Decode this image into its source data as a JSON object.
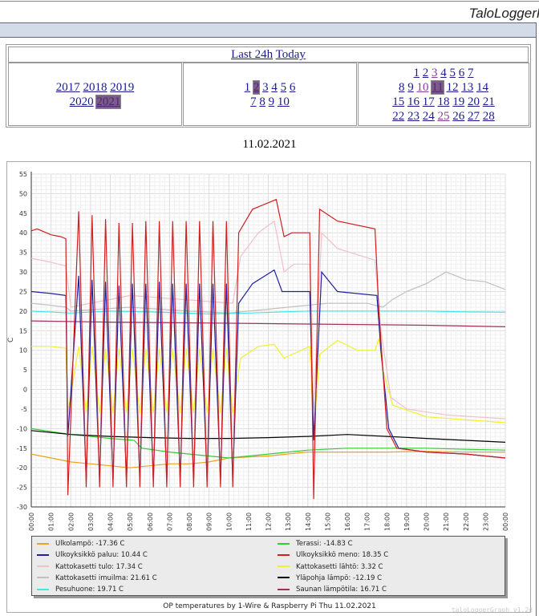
{
  "app": {
    "title": "TaloLoggerPi"
  },
  "nav": {
    "quick": [
      {
        "label": "Last 24h"
      },
      {
        "label": "Today"
      }
    ],
    "years": [
      {
        "label": "2017"
      },
      {
        "label": "2018"
      },
      {
        "label": "2019"
      },
      {
        "label": "2020"
      },
      {
        "label": "2021",
        "selected": true
      }
    ],
    "months": [
      {
        "label": "1"
      },
      {
        "label": "2",
        "selected": true
      },
      {
        "label": "3"
      },
      {
        "label": "4"
      },
      {
        "label": "5"
      },
      {
        "label": "6"
      },
      {
        "label": "7"
      },
      {
        "label": "8"
      },
      {
        "label": "9"
      },
      {
        "label": "10"
      }
    ],
    "days": [
      "1",
      "2",
      "3",
      "4",
      "5",
      "6",
      "7",
      "8",
      "9",
      "10",
      "11",
      "12",
      "13",
      "14",
      "15",
      "16",
      "17",
      "18",
      "19",
      "20",
      "21",
      "22",
      "23",
      "24",
      "25",
      "26",
      "27",
      "28"
    ],
    "visited_days": [
      "3",
      "10",
      "25"
    ],
    "selected_day": "11"
  },
  "date_heading": "11.02.2021",
  "chart_data": {
    "type": "line",
    "title": "OP temperatures by 1-Wire & Raspberry Pi Thu 11.02.2021",
    "ylabel": "C",
    "ylim": [
      -30,
      55
    ],
    "yticks": [
      -30,
      -25,
      -20,
      -15,
      -10,
      -5,
      0,
      5,
      10,
      15,
      20,
      25,
      30,
      35,
      40,
      45,
      50,
      55
    ],
    "xticks": [
      "00:00",
      "01:00",
      "02:00",
      "03:00",
      "04:00",
      "05:00",
      "06:00",
      "07:00",
      "08:00",
      "09:00",
      "10:00",
      "11:00",
      "12:00",
      "13:00",
      "14:00",
      "15:00",
      "16:00",
      "17:00",
      "18:00",
      "19:00",
      "20:00",
      "21:00",
      "22:00",
      "23:00",
      "00:00"
    ],
    "grid": true,
    "legend_placement": "bottom",
    "series": [
      {
        "name": "Ulkolampö: -17.36 C",
        "color": "#f0a020",
        "points": [
          [
            0,
            -16.5
          ],
          [
            1,
            -17.5
          ],
          [
            2,
            -18.5
          ],
          [
            3,
            -19
          ],
          [
            4,
            -19.5
          ],
          [
            5,
            -20
          ],
          [
            6,
            -19.5
          ],
          [
            7,
            -19
          ],
          [
            8,
            -19
          ],
          [
            9,
            -18.5
          ],
          [
            10,
            -17.5
          ],
          [
            12,
            -17
          ],
          [
            14,
            -16
          ],
          [
            16,
            -16
          ],
          [
            18,
            -16
          ],
          [
            20,
            -15.8
          ],
          [
            22,
            -16
          ],
          [
            24,
            -16
          ]
        ]
      },
      {
        "name": "Terassi: -14.83 C",
        "color": "#30d030",
        "points": [
          [
            0,
            -10
          ],
          [
            2,
            -11.5
          ],
          [
            4,
            -12.5
          ],
          [
            5.2,
            -13
          ],
          [
            5.6,
            -15
          ],
          [
            7,
            -16
          ],
          [
            8,
            -16.5
          ],
          [
            10,
            -17.5
          ],
          [
            12,
            -16.5
          ],
          [
            14,
            -15.5
          ],
          [
            16,
            -15
          ],
          [
            18,
            -15
          ],
          [
            20,
            -15
          ],
          [
            22,
            -15.3
          ],
          [
            24,
            -15.5
          ]
        ]
      },
      {
        "name": "Ulkoyksikkö paluu: 10.44 C",
        "color": "#2020a0",
        "points": [
          [
            0,
            25
          ],
          [
            1,
            24.5
          ],
          [
            1.75,
            24
          ],
          [
            1.85,
            -12
          ],
          [
            2.4,
            29
          ],
          [
            2.78,
            -23
          ],
          [
            3.08,
            28
          ],
          [
            3.46,
            -23
          ],
          [
            3.76,
            27.5
          ],
          [
            4.14,
            -23
          ],
          [
            4.44,
            26.5
          ],
          [
            4.82,
            -23
          ],
          [
            5.12,
            27
          ],
          [
            5.5,
            -23
          ],
          [
            5.8,
            27
          ],
          [
            6.18,
            -23
          ],
          [
            6.48,
            27.5
          ],
          [
            6.86,
            -23
          ],
          [
            7.16,
            27
          ],
          [
            7.54,
            -23
          ],
          [
            7.84,
            27
          ],
          [
            8.22,
            -23
          ],
          [
            8.52,
            27
          ],
          [
            8.9,
            -23
          ],
          [
            9.2,
            27
          ],
          [
            9.58,
            -23
          ],
          [
            9.88,
            27
          ],
          [
            10.2,
            -23
          ],
          [
            10.5,
            22
          ],
          [
            11.2,
            27
          ],
          [
            12.3,
            30.5
          ],
          [
            12.7,
            25
          ],
          [
            14.1,
            25
          ],
          [
            14.3,
            -13
          ],
          [
            14.7,
            30
          ],
          [
            15.5,
            25
          ],
          [
            17.5,
            24
          ],
          [
            17.7,
            10
          ],
          [
            18.1,
            -10
          ],
          [
            18.6,
            -15
          ],
          [
            20,
            -16
          ],
          [
            22,
            -16.5
          ],
          [
            24,
            -17.5
          ]
        ]
      },
      {
        "name": "Ulkoyksikkö meno: 18.35 C",
        "color": "#d02020",
        "points": [
          [
            0,
            40.5
          ],
          [
            0.3,
            41
          ],
          [
            1,
            39.5
          ],
          [
            1.5,
            39
          ],
          [
            1.75,
            38.5
          ],
          [
            1.85,
            -27
          ],
          [
            2.4,
            45.5
          ],
          [
            2.78,
            -25
          ],
          [
            3.08,
            44.5
          ],
          [
            3.46,
            -25
          ],
          [
            3.76,
            43.5
          ],
          [
            4.14,
            -25
          ],
          [
            4.44,
            42.5
          ],
          [
            4.82,
            -25
          ],
          [
            5.12,
            42.5
          ],
          [
            5.5,
            -25
          ],
          [
            5.8,
            43
          ],
          [
            6.18,
            -25
          ],
          [
            6.48,
            43
          ],
          [
            6.86,
            -25
          ],
          [
            7.16,
            43
          ],
          [
            7.54,
            -25
          ],
          [
            7.84,
            43
          ],
          [
            8.22,
            -25
          ],
          [
            8.52,
            43
          ],
          [
            8.9,
            -25
          ],
          [
            9.2,
            43
          ],
          [
            9.58,
            -25
          ],
          [
            9.88,
            43
          ],
          [
            10.2,
            -25
          ],
          [
            10.5,
            40
          ],
          [
            11.2,
            46
          ],
          [
            12.4,
            48.5
          ],
          [
            12.8,
            39
          ],
          [
            13.2,
            40
          ],
          [
            14.1,
            40
          ],
          [
            14.3,
            -28
          ],
          [
            14.6,
            46
          ],
          [
            15.5,
            43
          ],
          [
            17.4,
            41
          ],
          [
            17.6,
            20
          ],
          [
            18,
            -10
          ],
          [
            18.5,
            -15
          ],
          [
            20,
            -16
          ],
          [
            22,
            -16.5
          ],
          [
            24,
            -17.5
          ]
        ]
      },
      {
        "name": "Kattokasetti tulo: 17.34 C",
        "color": "#f0c0c8",
        "points": [
          [
            0,
            33.5
          ],
          [
            1,
            32.5
          ],
          [
            1.75,
            31.5
          ],
          [
            2,
            21
          ],
          [
            5,
            24
          ],
          [
            10.2,
            22
          ],
          [
            10.6,
            34
          ],
          [
            11.5,
            40
          ],
          [
            12.3,
            43
          ],
          [
            12.8,
            30
          ],
          [
            13.3,
            32
          ],
          [
            14.1,
            32
          ],
          [
            14.3,
            -5
          ],
          [
            14.7,
            40
          ],
          [
            15.5,
            36
          ],
          [
            17.4,
            33
          ],
          [
            17.7,
            15
          ],
          [
            18.2,
            -2
          ],
          [
            19,
            -5
          ],
          [
            21,
            -6.5
          ],
          [
            24,
            -7.5
          ]
        ]
      },
      {
        "name": "Kattokasetti lähtö: 3.32 C",
        "color": "#f0f030",
        "points": [
          [
            0,
            11
          ],
          [
            1,
            11
          ],
          [
            1.75,
            10.5
          ],
          [
            1.85,
            -6
          ],
          [
            2.4,
            11
          ],
          [
            2.78,
            -6
          ],
          [
            3.08,
            11
          ],
          [
            3.46,
            -6
          ],
          [
            3.76,
            10.5
          ],
          [
            4.14,
            -6
          ],
          [
            4.44,
            10.5
          ],
          [
            4.82,
            -6
          ],
          [
            5.12,
            10.5
          ],
          [
            5.5,
            -6
          ],
          [
            5.8,
            10.5
          ],
          [
            6.18,
            -6
          ],
          [
            6.48,
            10.5
          ],
          [
            6.86,
            -6
          ],
          [
            7.16,
            10.5
          ],
          [
            7.54,
            -6
          ],
          [
            7.84,
            10.5
          ],
          [
            8.22,
            -6
          ],
          [
            8.52,
            10.5
          ],
          [
            8.9,
            -6
          ],
          [
            9.2,
            10.5
          ],
          [
            9.58,
            -6
          ],
          [
            9.88,
            10.5
          ],
          [
            10.2,
            -6
          ],
          [
            10.6,
            8
          ],
          [
            11.5,
            11
          ],
          [
            12.3,
            11.5
          ],
          [
            12.8,
            8
          ],
          [
            14.1,
            11
          ],
          [
            14.3,
            -12
          ],
          [
            14.6,
            9
          ],
          [
            15.5,
            12.5
          ],
          [
            16.5,
            10
          ],
          [
            17.4,
            10
          ],
          [
            17.6,
            13
          ],
          [
            17.8,
            5
          ],
          [
            18.3,
            -4
          ],
          [
            20,
            -7
          ],
          [
            24,
            -8.5
          ]
        ]
      },
      {
        "name": "Kattokasetti imuilma: 21.61 C",
        "color": "#c0c0c0",
        "points": [
          [
            0,
            22
          ],
          [
            1,
            21.5
          ],
          [
            1.75,
            21
          ],
          [
            2,
            20
          ],
          [
            5,
            21
          ],
          [
            8,
            20
          ],
          [
            10,
            19.5
          ],
          [
            11,
            20
          ],
          [
            13,
            21
          ],
          [
            15,
            22
          ],
          [
            17,
            22
          ],
          [
            17.8,
            21
          ],
          [
            18.3,
            23
          ],
          [
            19,
            25
          ],
          [
            20,
            27
          ],
          [
            21,
            30
          ],
          [
            22,
            28
          ],
          [
            23,
            27.5
          ],
          [
            24,
            25.5
          ]
        ]
      },
      {
        "name": "Yläpohja lämpö: -12.19 C",
        "color": "#000000",
        "points": [
          [
            0,
            -10.5
          ],
          [
            2,
            -11.5
          ],
          [
            4,
            -12
          ],
          [
            6,
            -12.3
          ],
          [
            8,
            -12.5
          ],
          [
            10,
            -12.5
          ],
          [
            12,
            -12.3
          ],
          [
            14,
            -12
          ],
          [
            16,
            -11.5
          ],
          [
            18,
            -12
          ],
          [
            20,
            -12.5
          ],
          [
            22,
            -13
          ],
          [
            24,
            -13.5
          ]
        ]
      },
      {
        "name": "Pesuhuone: 19.71 C",
        "color": "#40e8e8",
        "points": [
          [
            0,
            20
          ],
          [
            2,
            19.5
          ],
          [
            4,
            20
          ],
          [
            6,
            19.8
          ],
          [
            9,
            19.3
          ],
          [
            11,
            19.5
          ],
          [
            14,
            20
          ],
          [
            17,
            20
          ],
          [
            20,
            20
          ],
          [
            22,
            19.8
          ],
          [
            24,
            19.7
          ]
        ]
      },
      {
        "name": "Saunan lämpötila: 16.71 C",
        "color": "#a03060",
        "points": [
          [
            0,
            17.5
          ],
          [
            4,
            17.2
          ],
          [
            8,
            17
          ],
          [
            12,
            16.8
          ],
          [
            16,
            16.6
          ],
          [
            20,
            16.4
          ],
          [
            24,
            16
          ]
        ]
      }
    ]
  },
  "watermark": "taloLoggerGraph v1.2d"
}
